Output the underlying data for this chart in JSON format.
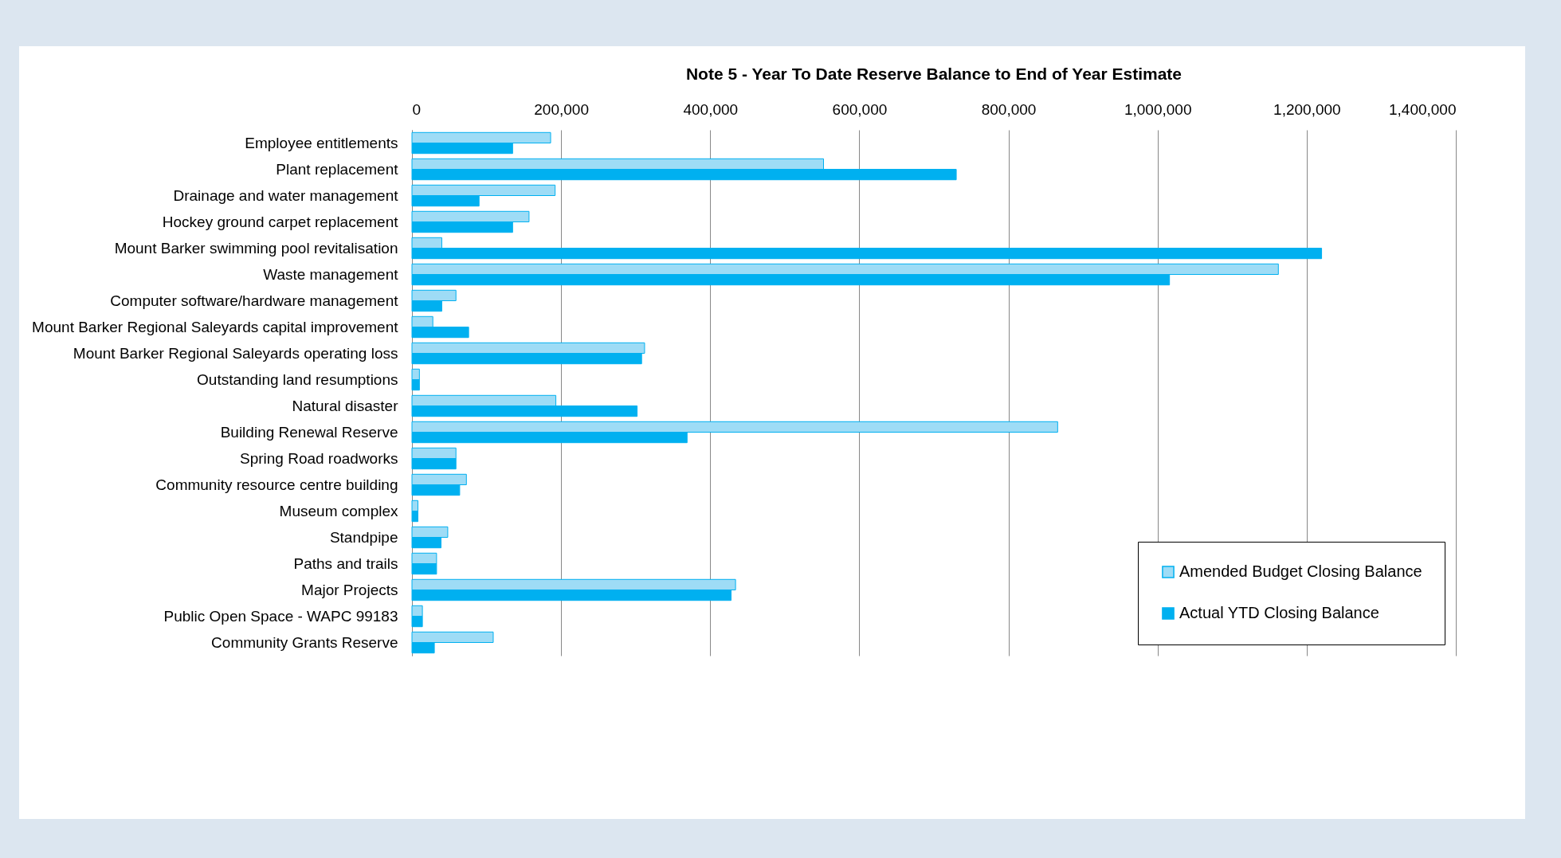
{
  "chart_data": {
    "type": "bar",
    "orientation": "horizontal",
    "title": "Note 5 - Year To Date Reserve Balance to End of Year Estimate",
    "categories": [
      "Employee entitlements",
      "Plant replacement",
      "Drainage and water management",
      "Hockey ground carpet replacement",
      "Mount Barker swimming pool revitalisation",
      "Waste management",
      "Computer software/hardware management",
      "Mount Barker Regional Saleyards capital improvement",
      "Mount Barker Regional Saleyards operating loss",
      "Outstanding land resumptions",
      "Natural disaster",
      "Building Renewal Reserve ",
      "Spring Road roadworks",
      "Community resource centre building",
      "Museum complex",
      "Standpipe",
      "Paths and trails",
      "Major Projects",
      "Public Open Space - WAPC 99183",
      "Community Grants Reserve"
    ],
    "series": [
      {
        "name": "Amended Budget Closing Balance",
        "color": "#9edcf6",
        "values": [
          186000,
          552000,
          192000,
          157000,
          40000,
          1162000,
          59000,
          28000,
          312000,
          10000,
          193000,
          866000,
          59000,
          73000,
          8000,
          48000,
          33000,
          434000,
          14000,
          109000
        ]
      },
      {
        "name": "Actual YTD Closing Balance",
        "color": "#00b0f0",
        "values": [
          135000,
          730000,
          90000,
          135000,
          1220000,
          1016000,
          40000,
          76000,
          308000,
          10000,
          302000,
          369000,
          59000,
          64000,
          8000,
          39000,
          33000,
          428000,
          14000,
          30000
        ]
      }
    ],
    "xlim": [
      0,
      1400000
    ],
    "xticks": [
      {
        "value": 0,
        "label": "0"
      },
      {
        "value": 200000,
        "label": "200,000"
      },
      {
        "value": 400000,
        "label": "400,000"
      },
      {
        "value": 600000,
        "label": "600,000"
      },
      {
        "value": 800000,
        "label": "800,000"
      },
      {
        "value": 1000000,
        "label": "1,000,000"
      },
      {
        "value": 1200000,
        "label": "1,200,000"
      },
      {
        "value": 1400000,
        "label": "1,400,000"
      }
    ],
    "grid": "x",
    "legend": "bottom right"
  }
}
